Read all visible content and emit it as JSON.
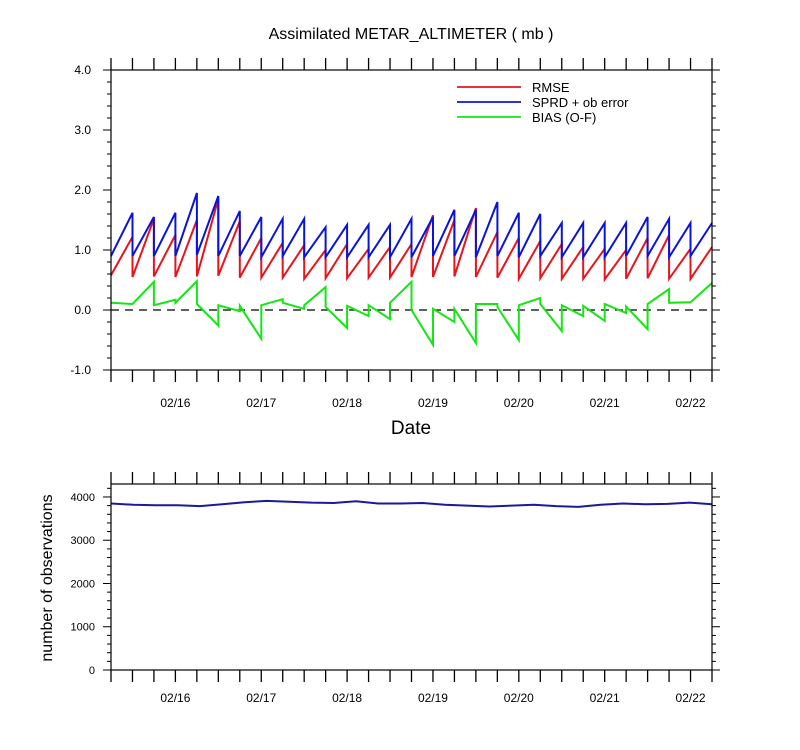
{
  "chart_data": [
    {
      "type": "line",
      "title": "Assimilated METAR_ALTIMETER ( mb )",
      "xlabel": "Date",
      "ylabel": "",
      "ylim": [
        -1.0,
        4.0
      ],
      "yticks": [
        "-1.0",
        "0.0",
        "1.0",
        "2.0",
        "3.0",
        "4.0"
      ],
      "xlim": [
        0,
        28
      ],
      "xtick_labels": [
        "02/16",
        "02/17",
        "02/18",
        "02/19",
        "02/20",
        "02/21",
        "02/22"
      ],
      "zero_line": "dashed",
      "legend": {
        "placement": "top-right",
        "entries": [
          "RMSE",
          "SPRD + ob error",
          "BIAS (O-F)"
        ]
      },
      "series": [
        {
          "name": "RMSE",
          "color": "#e8141c",
          "analysis": [
            0.58,
            0.55,
            0.56,
            0.55,
            0.56,
            0.57,
            0.54,
            0.54,
            0.54,
            0.52,
            0.53,
            0.53,
            0.54,
            0.54,
            0.55,
            0.55,
            0.56,
            0.55,
            0.54,
            0.52,
            0.53,
            0.52,
            0.52,
            0.51,
            0.52,
            0.53,
            0.52,
            0.52
          ],
          "forecast": [
            1.22,
            1.52,
            1.25,
            1.5,
            1.85,
            1.48,
            1.2,
            1.12,
            1.08,
            1.0,
            1.1,
            1.02,
            1.05,
            1.1,
            1.58,
            1.5,
            1.7,
            1.3,
            1.2,
            1.15,
            1.1,
            1.05,
            1.02,
            1.0,
            1.2,
            1.25,
            1.02,
            1.05
          ]
        },
        {
          "name": "SPRD + ob error",
          "color": "#0a14d8",
          "analysis": [
            0.9,
            0.9,
            0.9,
            0.9,
            0.92,
            0.9,
            0.9,
            0.88,
            0.9,
            0.88,
            0.88,
            0.88,
            0.88,
            0.88,
            0.88,
            0.9,
            0.9,
            0.88,
            0.9,
            0.88,
            0.9,
            0.88,
            0.88,
            0.88,
            0.9,
            0.9,
            0.88,
            0.9
          ],
          "forecast": [
            1.62,
            1.55,
            1.62,
            1.95,
            1.9,
            1.65,
            1.55,
            1.52,
            1.52,
            1.38,
            1.42,
            1.42,
            1.42,
            1.52,
            1.55,
            1.67,
            1.67,
            1.8,
            1.62,
            1.6,
            1.45,
            1.45,
            1.45,
            1.45,
            1.55,
            1.52,
            1.45,
            1.45
          ]
        },
        {
          "name": "BIAS (O-F)",
          "color": "#14e614",
          "points": [
            [
              0,
              0.12
            ],
            [
              1,
              0.1
            ],
            [
              2,
              0.47
            ],
            [
              2,
              0.08
            ],
            [
              3,
              0.17
            ],
            [
              3,
              0.12
            ],
            [
              4,
              0.48
            ],
            [
              4,
              0.1
            ],
            [
              5,
              -0.26
            ],
            [
              5,
              0.08
            ],
            [
              6,
              -0.02
            ],
            [
              6,
              0.07
            ],
            [
              7,
              -0.48
            ],
            [
              7,
              0.08
            ],
            [
              8,
              0.18
            ],
            [
              8,
              0.12
            ],
            [
              9,
              0.02
            ],
            [
              9,
              0.08
            ],
            [
              10,
              0.38
            ],
            [
              10,
              0.05
            ],
            [
              11,
              -0.3
            ],
            [
              11,
              0.07
            ],
            [
              12,
              -0.1
            ],
            [
              12,
              0.08
            ],
            [
              13,
              -0.15
            ],
            [
              13,
              0.12
            ],
            [
              14,
              0.47
            ],
            [
              14,
              0.0
            ],
            [
              15,
              -0.58
            ],
            [
              15,
              0.02
            ],
            [
              16,
              -0.2
            ],
            [
              16,
              0.02
            ],
            [
              17,
              -0.55
            ],
            [
              17,
              0.1
            ],
            [
              18,
              0.1
            ],
            [
              18,
              0.05
            ],
            [
              19,
              -0.5
            ],
            [
              19,
              0.08
            ],
            [
              20,
              0.2
            ],
            [
              20,
              0.1
            ],
            [
              21,
              -0.35
            ],
            [
              21,
              0.08
            ],
            [
              22,
              -0.1
            ],
            [
              22,
              0.07
            ],
            [
              23,
              -0.18
            ],
            [
              23,
              0.1
            ],
            [
              24,
              -0.05
            ],
            [
              24,
              0.06
            ],
            [
              25,
              -0.32
            ],
            [
              25,
              0.1
            ],
            [
              26,
              0.35
            ],
            [
              26,
              0.12
            ],
            [
              27,
              0.13
            ],
            [
              28,
              0.45
            ]
          ]
        }
      ]
    },
    {
      "type": "line",
      "ylabel": "number of observations",
      "ylim": [
        0,
        4300
      ],
      "yticks": [
        "0",
        "1000",
        "2000",
        "3000",
        "4000"
      ],
      "xlim": [
        0,
        28
      ],
      "xtick_labels": [
        "02/16",
        "02/17",
        "02/18",
        "02/19",
        "02/20",
        "02/21",
        "02/22"
      ],
      "series": [
        {
          "name": "observations",
          "color": "#1a1a9a",
          "values": [
            3850,
            3820,
            3810,
            3810,
            3790,
            3830,
            3880,
            3910,
            3890,
            3870,
            3860,
            3900,
            3850,
            3850,
            3860,
            3820,
            3800,
            3780,
            3800,
            3820,
            3790,
            3770,
            3820,
            3850,
            3830,
            3840,
            3870,
            3830
          ]
        }
      ]
    }
  ]
}
